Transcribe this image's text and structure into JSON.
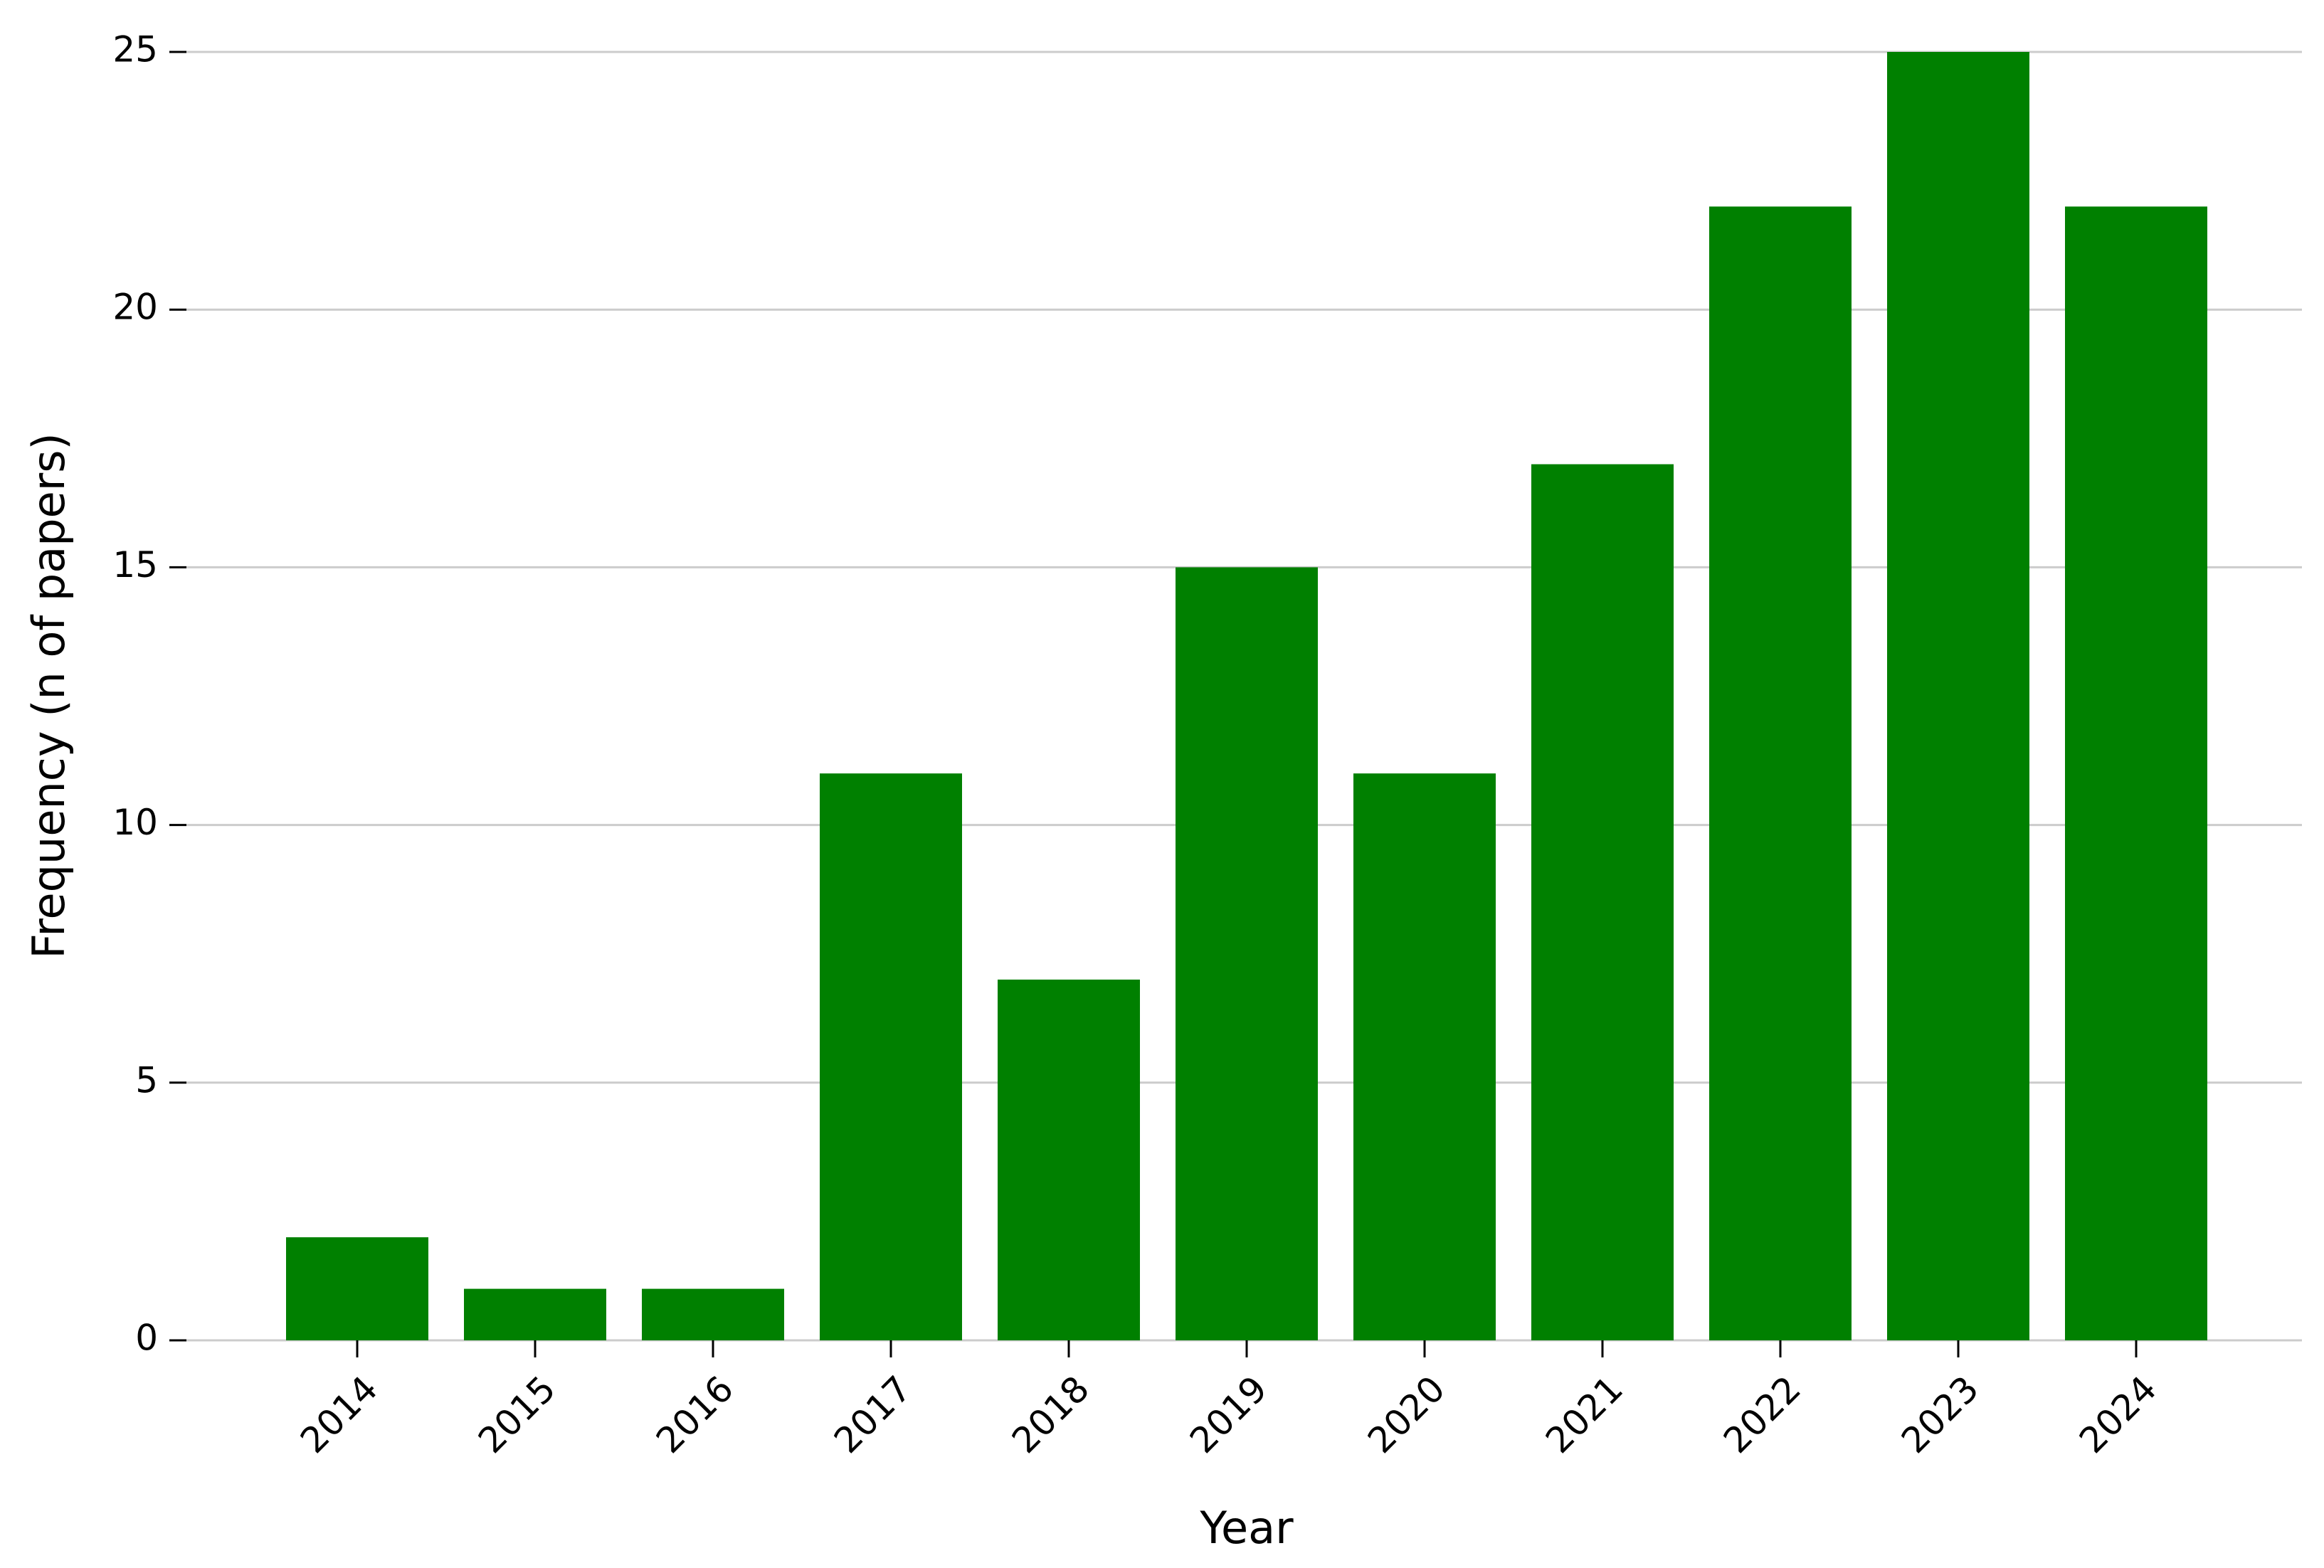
{
  "chart_data": {
    "type": "bar",
    "x_label": "Year",
    "y_label": "Frequency (n of papers)",
    "categories": [
      "2014",
      "2015",
      "2016",
      "2017",
      "2018",
      "2019",
      "2020",
      "2021",
      "2022",
      "2023",
      "2024"
    ],
    "values": [
      2,
      1,
      1,
      11,
      7,
      15,
      11,
      17,
      22,
      25,
      22
    ],
    "color": "#008000",
    "ylim": [
      0,
      25
    ],
    "yticks": [
      0,
      5,
      10,
      15,
      20,
      25
    ],
    "grid": true
  }
}
